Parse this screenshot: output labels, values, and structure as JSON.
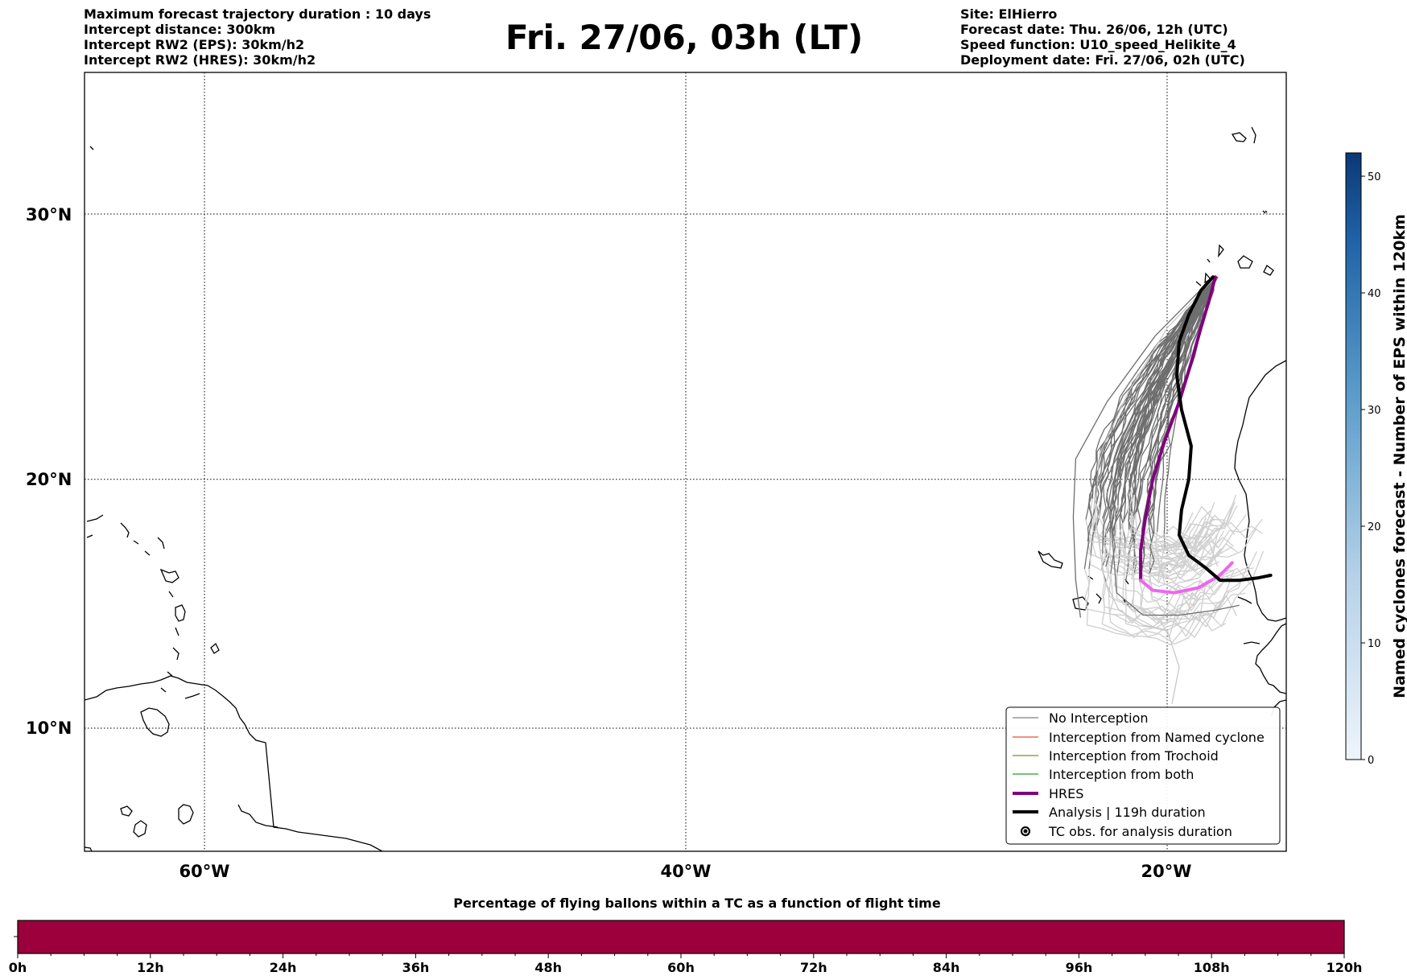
{
  "header": {
    "title": "Fri. 27/06, 03h (LT)",
    "left_lines": [
      "Maximum forecast trajectory duration : 10 days",
      "Intercept distance: 300km",
      "Intercept RW2 (EPS):  30km/h2",
      "Intercept RW2 (HRES): 30km/h2"
    ],
    "right_lines": [
      "Site: ElHierro",
      "Forecast date: Thu. 26/06, 12h (UTC)",
      "Speed function: U10_speed_Helikite_4",
      "Deployment date: Fri. 27/06, 02h (UTC)"
    ]
  },
  "map": {
    "lat_labels": [
      "30°N",
      "20°N",
      "10°N"
    ],
    "lon_labels": [
      "60°W",
      "40°W",
      "20°W"
    ],
    "lat_values": [
      30,
      20,
      10
    ],
    "lon_values": [
      -60,
      -40,
      -20
    ],
    "extent": {
      "lon_min": -65,
      "lon_max": -15,
      "lat_min": 5,
      "lat_max": 35.3
    },
    "launch_site": {
      "lon": -18,
      "lat": 27.7
    },
    "legend": [
      {
        "label": "No Interception",
        "color": "#808080",
        "style": "thin-line"
      },
      {
        "label": "Interception from Named cyclone",
        "color": "#e8502a",
        "style": "thin-line"
      },
      {
        "label": "Interception from Trochoid",
        "color": "#8a8a1a",
        "style": "thin-line"
      },
      {
        "label": "Interception from both",
        "color": "#2a9a2a",
        "style": "thin-line"
      },
      {
        "label": "HRES",
        "color": "#800080",
        "style": "thick-line"
      },
      {
        "label": "Analysis | 119h duration",
        "color": "#000000",
        "style": "thick-line"
      },
      {
        "label": "TC obs. for analysis duration",
        "color": "#000000",
        "style": "cyclone-icon"
      }
    ],
    "hres_track": [
      [
        -18.0,
        27.7
      ],
      [
        -18.2,
        27.0
      ],
      [
        -18.6,
        25.8
      ],
      [
        -19.0,
        24.5
      ],
      [
        -19.5,
        23.0
      ],
      [
        -20.1,
        21.5
      ],
      [
        -20.6,
        20.0
      ],
      [
        -20.9,
        18.5
      ],
      [
        -21.1,
        17.2
      ],
      [
        -21.1,
        16.0
      ],
      [
        -20.6,
        15.6
      ],
      [
        -19.7,
        15.5
      ],
      [
        -18.7,
        15.7
      ],
      [
        -17.8,
        16.2
      ],
      [
        -17.3,
        16.7
      ]
    ],
    "hres_light_from_index": 9,
    "analysis_track": [
      [
        -18.1,
        27.7
      ],
      [
        -18.6,
        27.2
      ],
      [
        -19.1,
        26.3
      ],
      [
        -19.5,
        25.3
      ],
      [
        -19.6,
        24.0
      ],
      [
        -19.4,
        22.7
      ],
      [
        -19.0,
        21.3
      ],
      [
        -19.1,
        20.0
      ],
      [
        -19.4,
        18.8
      ],
      [
        -19.5,
        17.8
      ],
      [
        -19.1,
        17.0
      ],
      [
        -18.4,
        16.5
      ],
      [
        -17.8,
        16.0
      ],
      [
        -17.0,
        16.0
      ],
      [
        -16.2,
        16.1
      ],
      [
        -15.7,
        16.2
      ]
    ]
  },
  "colorbar": {
    "label": "Named cyclones forecast - Number of EPS within 120km",
    "ticks": [
      0,
      10,
      20,
      30,
      40,
      50
    ],
    "min": 0,
    "max": 52,
    "color_low": "#e8f0f9",
    "color_high": "#0c3b78"
  },
  "timebar": {
    "title": "Percentage of flying ballons within a TC as a function of flight time",
    "ticks": [
      "0h",
      "12h",
      "24h",
      "36h",
      "48h",
      "60h",
      "72h",
      "84h",
      "96h",
      "108h",
      "120h"
    ],
    "min_hours": 0,
    "max_hours": 120,
    "fill_color": "#9c003c"
  }
}
